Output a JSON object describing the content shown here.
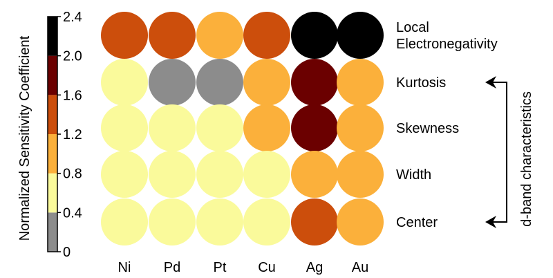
{
  "chart_data": {
    "type": "heatmap",
    "categories": [
      "Ni",
      "Pd",
      "Pt",
      "Cu",
      "Ag",
      "Au"
    ],
    "rows": [
      "Local\nElectronegativity",
      "Kurtosis",
      "Skewness",
      "Width",
      "Center"
    ],
    "values": [
      [
        1.5,
        1.5,
        1.0,
        1.5,
        2.2,
        2.2
      ],
      [
        0.6,
        0.2,
        0.2,
        1.0,
        1.8,
        1.0
      ],
      [
        0.6,
        0.6,
        0.6,
        1.0,
        1.8,
        1.0
      ],
      [
        0.6,
        0.6,
        0.6,
        0.6,
        1.0,
        1.0
      ],
      [
        0.6,
        0.6,
        0.6,
        0.6,
        1.5,
        1.0
      ]
    ],
    "colorbar": {
      "label": "Normalized Sensitivity Coefficient",
      "ticks": [
        "0",
        "0.4",
        "0.8",
        "1.2",
        "1.6",
        "2.0",
        "2.4"
      ],
      "bins": [
        {
          "from": 0.0,
          "to": 0.4,
          "color": "#8c8c8c"
        },
        {
          "from": 0.4,
          "to": 0.8,
          "color": "#fafa9b"
        },
        {
          "from": 0.8,
          "to": 1.2,
          "color": "#fbb03b"
        },
        {
          "from": 1.2,
          "to": 1.6,
          "color": "#cc4e0c"
        },
        {
          "from": 1.6,
          "to": 2.0,
          "color": "#6b0000"
        },
        {
          "from": 2.0,
          "to": 2.4,
          "color": "#000000"
        }
      ],
      "vmin": 0,
      "vmax": 2.4
    },
    "bracket_label": "d-band characteristics"
  }
}
